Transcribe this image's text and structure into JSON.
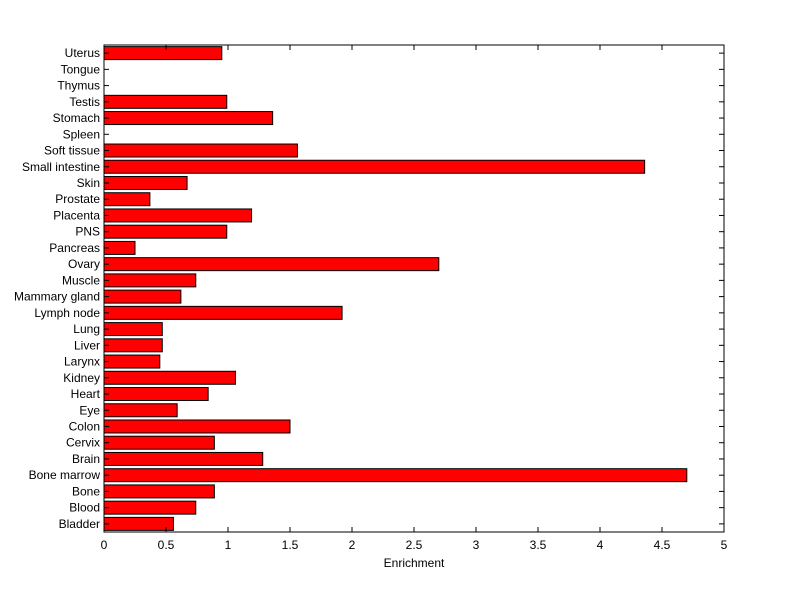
{
  "chart_data": {
    "type": "bar",
    "orientation": "horizontal",
    "categories": [
      "Bladder",
      "Blood",
      "Bone",
      "Bone marrow",
      "Brain",
      "Cervix",
      "Colon",
      "Eye",
      "Heart",
      "Kidney",
      "Larynx",
      "Liver",
      "Lung",
      "Lymph node",
      "Mammary gland",
      "Muscle",
      "Ovary",
      "Pancreas",
      "PNS",
      "Placenta",
      "Prostate",
      "Skin",
      "Small intestine",
      "Soft tissue",
      "Spleen",
      "Stomach",
      "Testis",
      "Thymus",
      "Tongue",
      "Uterus"
    ],
    "values": [
      0.56,
      0.74,
      0.89,
      4.7,
      1.28,
      0.89,
      1.5,
      0.59,
      0.84,
      1.06,
      0.45,
      0.47,
      0.47,
      1.92,
      0.62,
      0.74,
      2.7,
      0.25,
      0.99,
      1.19,
      0.37,
      0.67,
      4.36,
      1.56,
      0,
      1.36,
      0.99,
      0,
      0,
      0.95
    ],
    "xlabel": "Enrichment",
    "ylabel": "",
    "title": "",
    "xlim": [
      0,
      5
    ],
    "xticks": [
      "0",
      "0.5",
      "1",
      "1.5",
      "2",
      "2.5",
      "3",
      "3.5",
      "4",
      "4.5",
      "5"
    ],
    "grid": false,
    "bar_color": "#ff0000",
    "bar_edge_color": "#000000"
  }
}
